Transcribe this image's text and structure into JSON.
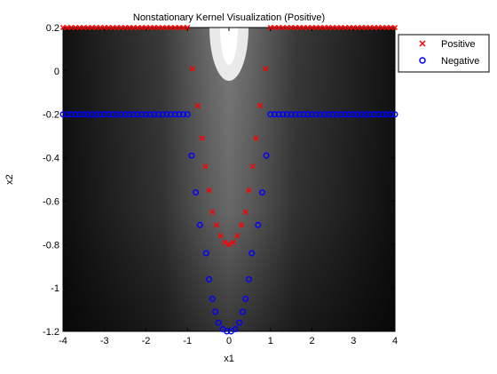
{
  "chart_data": {
    "type": "scatter",
    "title": "Nonstationary Kernel Visualization (Positive)",
    "xlabel": "x1",
    "ylabel": "x2",
    "xlim": [
      -4,
      4
    ],
    "ylim": [
      -1.2,
      0.2
    ],
    "xticks": [
      "-4",
      "-3",
      "-2",
      "-1",
      "0",
      "1",
      "2",
      "3",
      "4"
    ],
    "yticks": [
      "0.2",
      "0",
      "-0.2",
      "-0.4",
      "-0.6",
      "-0.8",
      "-1",
      "-1.2"
    ],
    "background": "grayscale kernel heatmap, bright near x1=0 top, dark at outer sides and bottom",
    "legend_position": "outside right, top",
    "colors": {
      "positive": "#ff0000",
      "negative": "#0000ff"
    },
    "series": [
      {
        "name": "Positive",
        "marker": "x",
        "points": [
          [
            -4.0,
            0.2
          ],
          [
            -3.9,
            0.2
          ],
          [
            -3.8,
            0.2
          ],
          [
            -3.7,
            0.2
          ],
          [
            -3.6,
            0.2
          ],
          [
            -3.5,
            0.2
          ],
          [
            -3.4,
            0.2
          ],
          [
            -3.3,
            0.2
          ],
          [
            -3.2,
            0.2
          ],
          [
            -3.1,
            0.2
          ],
          [
            -3.0,
            0.2
          ],
          [
            -2.9,
            0.2
          ],
          [
            -2.8,
            0.2
          ],
          [
            -2.7,
            0.2
          ],
          [
            -2.6,
            0.2
          ],
          [
            -2.5,
            0.2
          ],
          [
            -2.4,
            0.2
          ],
          [
            -2.3,
            0.2
          ],
          [
            -2.2,
            0.2
          ],
          [
            -2.1,
            0.2
          ],
          [
            -2.0,
            0.2
          ],
          [
            -1.9,
            0.2
          ],
          [
            -1.8,
            0.2
          ],
          [
            -1.7,
            0.2
          ],
          [
            -1.6,
            0.2
          ],
          [
            -1.5,
            0.2
          ],
          [
            -1.4,
            0.2
          ],
          [
            -1.3,
            0.2
          ],
          [
            -1.2,
            0.2
          ],
          [
            -1.1,
            0.2
          ],
          [
            -1.0,
            0.2
          ],
          [
            1.0,
            0.2
          ],
          [
            1.1,
            0.2
          ],
          [
            1.2,
            0.2
          ],
          [
            1.3,
            0.2
          ],
          [
            1.4,
            0.2
          ],
          [
            1.5,
            0.2
          ],
          [
            1.6,
            0.2
          ],
          [
            1.7,
            0.2
          ],
          [
            1.8,
            0.2
          ],
          [
            1.9,
            0.2
          ],
          [
            2.0,
            0.2
          ],
          [
            2.1,
            0.2
          ],
          [
            2.2,
            0.2
          ],
          [
            2.3,
            0.2
          ],
          [
            2.4,
            0.2
          ],
          [
            2.5,
            0.2
          ],
          [
            2.6,
            0.2
          ],
          [
            2.7,
            0.2
          ],
          [
            2.8,
            0.2
          ],
          [
            2.9,
            0.2
          ],
          [
            3.0,
            0.2
          ],
          [
            3.1,
            0.2
          ],
          [
            3.2,
            0.2
          ],
          [
            3.3,
            0.2
          ],
          [
            3.4,
            0.2
          ],
          [
            3.5,
            0.2
          ],
          [
            3.6,
            0.2
          ],
          [
            3.7,
            0.2
          ],
          [
            3.8,
            0.2
          ],
          [
            3.9,
            0.2
          ],
          [
            4.0,
            0.2
          ],
          [
            -0.88,
            0.01
          ],
          [
            -0.75,
            -0.16
          ],
          [
            -0.65,
            -0.31
          ],
          [
            -0.57,
            -0.44
          ],
          [
            -0.48,
            -0.55
          ],
          [
            -0.4,
            -0.65
          ],
          [
            -0.3,
            -0.71
          ],
          [
            -0.2,
            -0.76
          ],
          [
            -0.1,
            -0.79
          ],
          [
            0.0,
            -0.8
          ],
          [
            0.1,
            -0.79
          ],
          [
            0.2,
            -0.76
          ],
          [
            0.3,
            -0.71
          ],
          [
            0.4,
            -0.65
          ],
          [
            0.48,
            -0.55
          ],
          [
            0.57,
            -0.44
          ],
          [
            0.65,
            -0.31
          ],
          [
            0.75,
            -0.16
          ],
          [
            0.88,
            0.01
          ]
        ]
      },
      {
        "name": "Negative",
        "marker": "o",
        "points": [
          [
            -4.0,
            -0.2
          ],
          [
            -3.9,
            -0.2
          ],
          [
            -3.8,
            -0.2
          ],
          [
            -3.7,
            -0.2
          ],
          [
            -3.6,
            -0.2
          ],
          [
            -3.5,
            -0.2
          ],
          [
            -3.4,
            -0.2
          ],
          [
            -3.3,
            -0.2
          ],
          [
            -3.2,
            -0.2
          ],
          [
            -3.1,
            -0.2
          ],
          [
            -3.0,
            -0.2
          ],
          [
            -2.9,
            -0.2
          ],
          [
            -2.8,
            -0.2
          ],
          [
            -2.7,
            -0.2
          ],
          [
            -2.6,
            -0.2
          ],
          [
            -2.5,
            -0.2
          ],
          [
            -2.4,
            -0.2
          ],
          [
            -2.3,
            -0.2
          ],
          [
            -2.2,
            -0.2
          ],
          [
            -2.1,
            -0.2
          ],
          [
            -2.0,
            -0.2
          ],
          [
            -1.9,
            -0.2
          ],
          [
            -1.8,
            -0.2
          ],
          [
            -1.7,
            -0.2
          ],
          [
            -1.6,
            -0.2
          ],
          [
            -1.5,
            -0.2
          ],
          [
            -1.4,
            -0.2
          ],
          [
            -1.3,
            -0.2
          ],
          [
            -1.2,
            -0.2
          ],
          [
            -1.1,
            -0.2
          ],
          [
            -1.0,
            -0.2
          ],
          [
            1.0,
            -0.2
          ],
          [
            1.1,
            -0.2
          ],
          [
            1.2,
            -0.2
          ],
          [
            1.3,
            -0.2
          ],
          [
            1.4,
            -0.2
          ],
          [
            1.5,
            -0.2
          ],
          [
            1.6,
            -0.2
          ],
          [
            1.7,
            -0.2
          ],
          [
            1.8,
            -0.2
          ],
          [
            1.9,
            -0.2
          ],
          [
            2.0,
            -0.2
          ],
          [
            2.1,
            -0.2
          ],
          [
            2.2,
            -0.2
          ],
          [
            2.3,
            -0.2
          ],
          [
            2.4,
            -0.2
          ],
          [
            2.5,
            -0.2
          ],
          [
            2.6,
            -0.2
          ],
          [
            2.7,
            -0.2
          ],
          [
            2.8,
            -0.2
          ],
          [
            2.9,
            -0.2
          ],
          [
            3.0,
            -0.2
          ],
          [
            3.1,
            -0.2
          ],
          [
            3.2,
            -0.2
          ],
          [
            3.3,
            -0.2
          ],
          [
            3.4,
            -0.2
          ],
          [
            3.5,
            -0.2
          ],
          [
            3.6,
            -0.2
          ],
          [
            3.7,
            -0.2
          ],
          [
            3.8,
            -0.2
          ],
          [
            3.9,
            -0.2
          ],
          [
            4.0,
            -0.2
          ],
          [
            -0.9,
            -0.39
          ],
          [
            -0.8,
            -0.56
          ],
          [
            -0.7,
            -0.71
          ],
          [
            -0.55,
            -0.84
          ],
          [
            -0.48,
            -0.96
          ],
          [
            -0.4,
            -1.05
          ],
          [
            -0.33,
            -1.11
          ],
          [
            -0.25,
            -1.16
          ],
          [
            -0.15,
            -1.19
          ],
          [
            -0.05,
            -1.2
          ],
          [
            0.05,
            -1.2
          ],
          [
            0.15,
            -1.19
          ],
          [
            0.25,
            -1.16
          ],
          [
            0.33,
            -1.11
          ],
          [
            0.4,
            -1.05
          ],
          [
            0.48,
            -0.96
          ],
          [
            0.55,
            -0.84
          ],
          [
            0.7,
            -0.71
          ],
          [
            0.8,
            -0.56
          ],
          [
            0.9,
            -0.39
          ]
        ]
      }
    ]
  }
}
